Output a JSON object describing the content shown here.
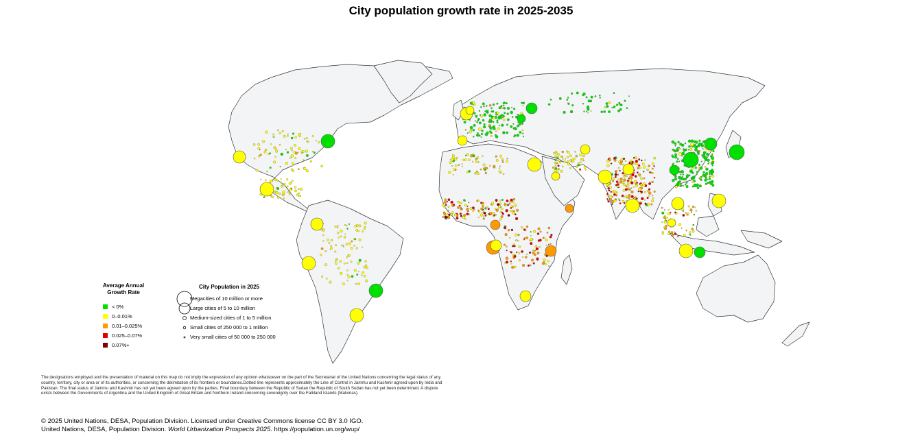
{
  "title": "City population growth rate in 2025-2035",
  "growth_legend": {
    "title": "Average Annual Growth Rate",
    "items": [
      {
        "label": "< 0%",
        "color": "#00e000"
      },
      {
        "label": "0–0.01%",
        "color": "#ffff00"
      },
      {
        "label": "0.01–0.025%",
        "color": "#ff9900"
      },
      {
        "label": "0.025–0.07%",
        "color": "#e00000"
      },
      {
        "label": "0.07%+",
        "color": "#800000"
      }
    ]
  },
  "population_legend": {
    "title": "City Population in 2025",
    "items": [
      {
        "label": "Megacities of 10 million or more"
      },
      {
        "label": "Large cities of 5 to 10 million"
      },
      {
        "label": "Medium-sized cities of 1 to 5 million"
      },
      {
        "label": "Small cities of 250 000 to 1 million"
      },
      {
        "label": "Very small cities of 50 000 to 250 000"
      }
    ]
  },
  "disclaimer": "The designations employed and the presentation of material on this map do not imply the expression of any opinion whatsoever on the part of the Secretariat of the United Nations concerning the legal status of any country, territory, city or area or of its authorities, or concerning the delimitation of its frontiers or boundaries.Dotted line represents approximately the Line of Control in Jammu and Kashmir agreed upon by India and Pakistan. The final status of Jammu and Kashmir has not yet been agreed upon by the parties. Final boundary between the Republic of Sudan the Republic of South Sudan has not yet been determined. A dispute exists between the Governments of Argentina and the United Kingdom of Great Britain and Northern Ireland concerning sovereignty over the Falkland Islands (Malvinas).",
  "credits": {
    "line1": "© 2025 United Nations, DESA, Population Division. Licensed under Creative Commons license CC BY 3.0 IGO.",
    "line2_prefix": "United Nations, DESA, Population Division.",
    "line2_italic": "World Urbanization Prospects 2025",
    "line2_suffix": ". https://population.un.org/wup/"
  },
  "colors": {
    "land": "#f3f4f6",
    "border": "#333333"
  }
}
